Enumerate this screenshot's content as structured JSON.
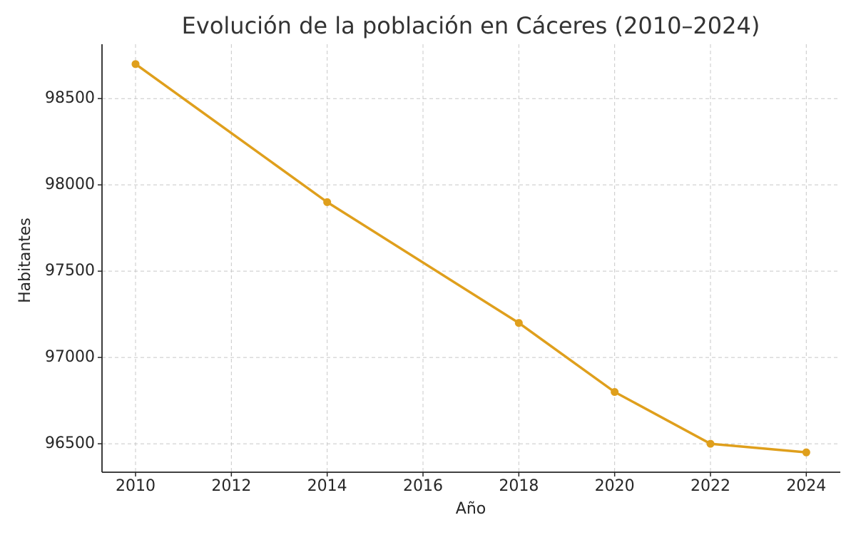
{
  "chart_data": {
    "type": "line",
    "title": "Evolución de la población en Cáceres (2010–2024)",
    "x_label": "Año",
    "y_label": "Habitantes",
    "x": [
      2010,
      2014,
      2018,
      2020,
      2022,
      2024
    ],
    "series": [
      {
        "name": "Habitantes",
        "color": "#df9f1c",
        "values": [
          98700,
          97900,
          97200,
          96800,
          96500,
          96450
        ]
      }
    ],
    "xlim": [
      2009.3,
      2024.71
    ],
    "xticks": [
      2010,
      2012,
      2014,
      2016,
      2018,
      2020,
      2022,
      2024
    ],
    "ylim": [
      96335,
      98815
    ],
    "yticks": [
      96500,
      97000,
      97500,
      98000,
      98500
    ],
    "grid": true
  }
}
